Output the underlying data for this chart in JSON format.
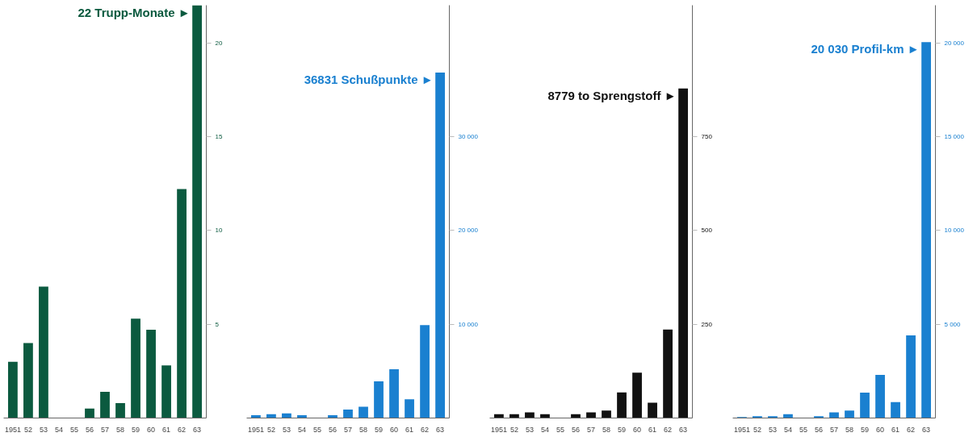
{
  "chart_data": [
    {
      "type": "bar",
      "categories": [
        "1951",
        "52",
        "53",
        "54",
        "55",
        "56",
        "57",
        "58",
        "59",
        "60",
        "61",
        "62",
        "63"
      ],
      "values": [
        3,
        4,
        7,
        0,
        0,
        0.5,
        1.4,
        0.8,
        5.3,
        4.7,
        2.8,
        12.2,
        22
      ],
      "color": "#0b5a3f",
      "ylim": [
        0,
        22
      ],
      "yticks": [
        5,
        10,
        15,
        20
      ],
      "annotations": [
        {
          "text": "22 Trupp-Monate ►",
          "x": "63",
          "y": 22
        }
      ]
    },
    {
      "type": "bar",
      "categories": [
        "1951",
        "52",
        "53",
        "54",
        "55",
        "56",
        "57",
        "58",
        "59",
        "60",
        "61",
        "62",
        "63"
      ],
      "values": [
        300,
        400,
        500,
        300,
        0,
        300,
        900,
        1200,
        3900,
        5200,
        2000,
        9900,
        36831
      ],
      "color": "#1a80d0",
      "ylim": [
        0,
        44000
      ],
      "yticks": [
        {
          "value": 10000,
          "label": "10 000"
        },
        {
          "value": 20000,
          "label": "20 000"
        },
        {
          "value": 30000,
          "label": "30 000"
        }
      ],
      "annotations": [
        {
          "text": "36831 Schußpunkte ►",
          "x": "63",
          "y": 36831
        }
      ]
    },
    {
      "type": "bar",
      "categories": [
        "1951",
        "52",
        "53",
        "54",
        "55",
        "56",
        "57",
        "58",
        "59",
        "60",
        "61",
        "62",
        "63"
      ],
      "values": [
        10,
        10,
        15,
        10,
        0,
        10,
        15,
        20,
        68,
        121,
        41,
        236,
        878
      ],
      "color": "#111111",
      "ylim": [
        0,
        1100
      ],
      "yticks": [
        250,
        500,
        750
      ],
      "annotations": [
        {
          "text": "8779 to Sprengstoff ►",
          "x": "63",
          "y": 878
        }
      ]
    },
    {
      "type": "bar",
      "categories": [
        "1951",
        "52",
        "53",
        "54",
        "55",
        "56",
        "57",
        "58",
        "59",
        "60",
        "61",
        "62",
        "63"
      ],
      "values": [
        50,
        100,
        100,
        200,
        0,
        100,
        300,
        400,
        1350,
        2300,
        850,
        4400,
        20030
      ],
      "color": "#1a80d0",
      "ylim": [
        0,
        22000
      ],
      "yticks": [
        {
          "value": 5000,
          "label": "5 000"
        },
        {
          "value": 10000,
          "label": "10 000"
        },
        {
          "value": 15000,
          "label": "15 000"
        },
        {
          "value": 20000,
          "label": "20 000"
        }
      ],
      "annotations": [
        {
          "text": "20 030 Profil-km ►",
          "x": "63",
          "y": 20030
        }
      ]
    }
  ]
}
